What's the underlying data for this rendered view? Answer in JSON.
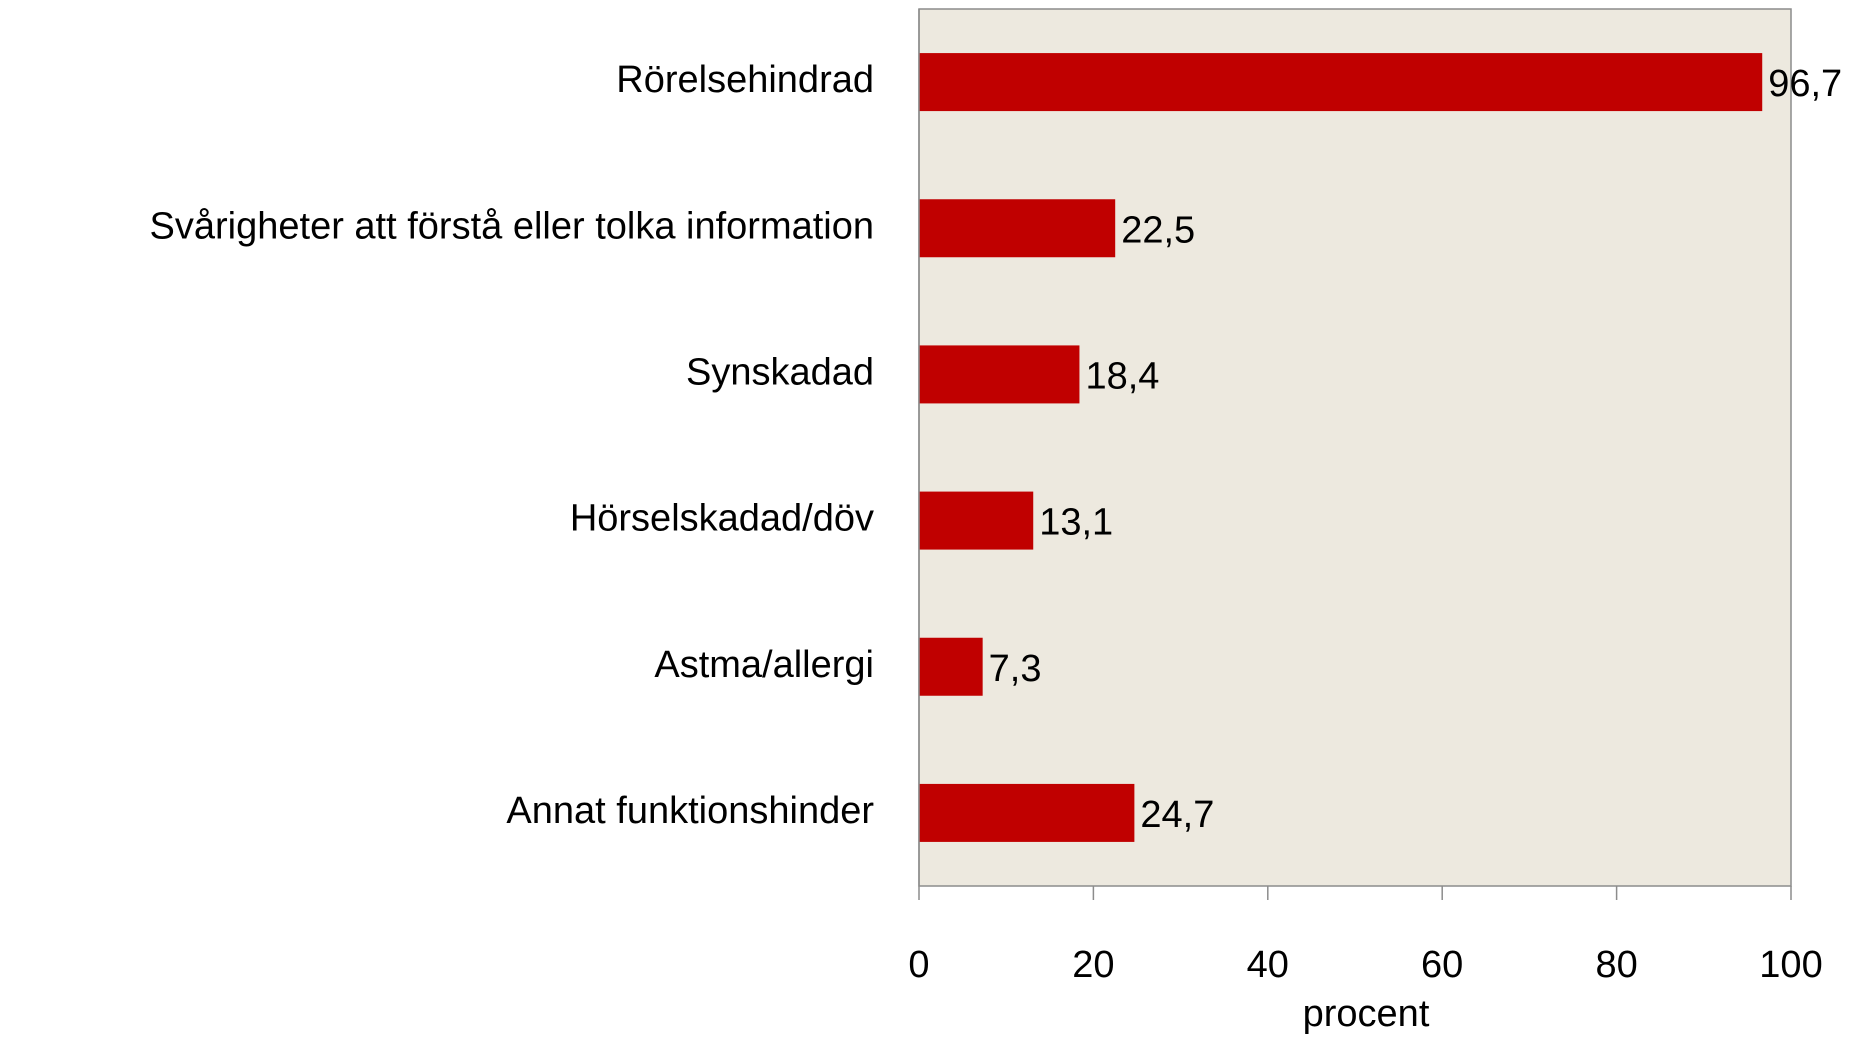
{
  "chart_data": {
    "type": "bar",
    "orientation": "horizontal",
    "categories": [
      "Rörelsehindrad",
      "Svårigheter att förstå eller tolka information",
      "Synskadad",
      "Hörselskadad/döv",
      "Astma/allergi",
      "Annat funktionshinder"
    ],
    "values": [
      96.7,
      22.5,
      18.4,
      13.1,
      7.3,
      24.7
    ],
    "value_labels": [
      "96,7",
      "22,5",
      "18,4",
      "13,1",
      "7,3",
      "24,7"
    ],
    "color": "#c00000",
    "xlabel": "procent",
    "xlim": [
      0,
      100
    ],
    "xticks": [
      0,
      20,
      40,
      60,
      80,
      100
    ],
    "grid": false
  }
}
